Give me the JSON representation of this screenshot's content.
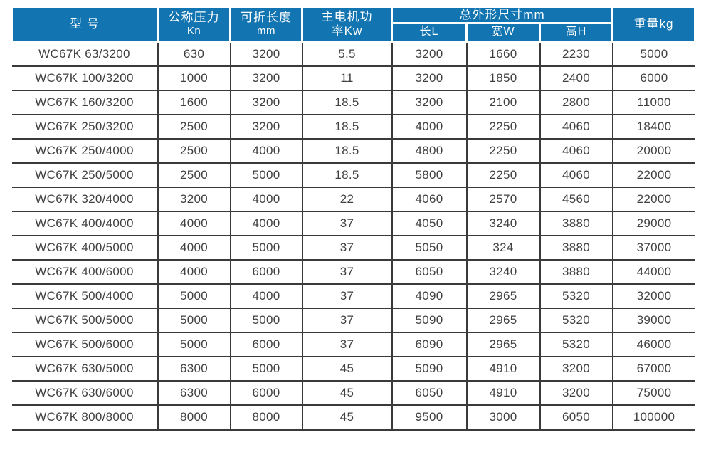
{
  "page": {
    "background_color": "#ffffff",
    "accent_color": "#1274b0",
    "grid_color": "#3a3a3a",
    "text_color": "#404040"
  },
  "table": {
    "header": {
      "model": "型 号",
      "pressure_line1": "公称压力",
      "pressure_line2": "Kn",
      "fold_length_line1": "可折长度",
      "fold_length_line2": "mm",
      "motor_power_line1": "主电机功",
      "motor_power_line2": "率Kw",
      "dimensions_group": "总外形尺寸mm",
      "dim_length": "长L",
      "dim_width": "宽W",
      "dim_height": "高H",
      "weight": "重量kg"
    },
    "rows": [
      [
        "WC67K 63/3200",
        "630",
        "3200",
        "5.5",
        "3200",
        "1660",
        "2230",
        "5000"
      ],
      [
        "WC67K 100/3200",
        "1000",
        "3200",
        "11",
        "3200",
        "1850",
        "2400",
        "6000"
      ],
      [
        "WC67K 160/3200",
        "1600",
        "3200",
        "18.5",
        "3200",
        "2100",
        "2800",
        "11000"
      ],
      [
        "WC67K 250/3200",
        "2500",
        "3200",
        "18.5",
        "4000",
        "2250",
        "4060",
        "18400"
      ],
      [
        "WC67K 250/4000",
        "2500",
        "4000",
        "18.5",
        "4800",
        "2250",
        "4060",
        "20000"
      ],
      [
        "WC67K 250/5000",
        "2500",
        "5000",
        "18.5",
        "5800",
        "2250",
        "4060",
        "22000"
      ],
      [
        "WC67K 320/4000",
        "3200",
        "4000",
        "22",
        "4060",
        "2570",
        "4560",
        "22000"
      ],
      [
        "WC67K 400/4000",
        "4000",
        "4000",
        "37",
        "4050",
        "3240",
        "3880",
        "29000"
      ],
      [
        "WC67K 400/5000",
        "4000",
        "5000",
        "37",
        "5050",
        "324",
        "3880",
        "37000"
      ],
      [
        "WC67K 400/6000",
        "4000",
        "6000",
        "37",
        "6050",
        "3240",
        "3880",
        "44000"
      ],
      [
        "WC67K 500/4000",
        "5000",
        "4000",
        "37",
        "4090",
        "2965",
        "5320",
        "32000"
      ],
      [
        "WC67K 500/5000",
        "5000",
        "5000",
        "37",
        "5090",
        "2965",
        "5320",
        "39000"
      ],
      [
        "WC67K 500/6000",
        "5000",
        "6000",
        "37",
        "6090",
        "2965",
        "5320",
        "46000"
      ],
      [
        "WC67K 630/5000",
        "6300",
        "5000",
        "45",
        "5090",
        "4910",
        "3200",
        "67000"
      ],
      [
        "WC67K 630/6000",
        "6300",
        "6000",
        "45",
        "6050",
        "4910",
        "3200",
        "75000"
      ],
      [
        "WC67K 800/8000",
        "8000",
        "8000",
        "45",
        "9500",
        "3000",
        "6050",
        "100000"
      ]
    ]
  }
}
